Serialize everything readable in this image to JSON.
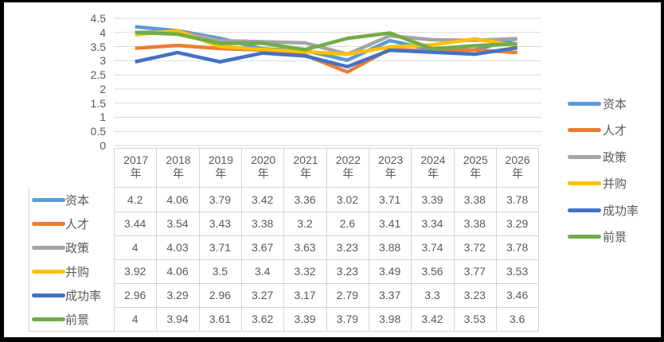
{
  "colors": {
    "text": "#595959",
    "grid": "#d9d9d9",
    "table_border": "#d4d4d4",
    "frame_border": "#000000"
  },
  "chart_data": {
    "type": "line",
    "title": "",
    "xlabel": "",
    "ylabel": "",
    "ylim": [
      0,
      4.5
    ],
    "y_ticks": [
      0,
      0.5,
      1,
      1.5,
      2,
      2.5,
      3,
      3.5,
      4,
      4.5
    ],
    "grid": true,
    "legend_position": "right",
    "category_suffix": "年",
    "categories": [
      "2017",
      "2018",
      "2019",
      "2020",
      "2021",
      "2022",
      "2023",
      "2024",
      "2025",
      "2026"
    ],
    "series": [
      {
        "name": "资本",
        "slug": "capital",
        "color": "#5B9BD5",
        "values": [
          4.2,
          4.06,
          3.79,
          3.42,
          3.36,
          3.02,
          3.71,
          3.39,
          3.38,
          3.78
        ]
      },
      {
        "name": "人才",
        "slug": "talent",
        "color": "#ED7D31",
        "values": [
          3.44,
          3.54,
          3.43,
          3.38,
          3.2,
          2.6,
          3.41,
          3.34,
          3.38,
          3.29
        ]
      },
      {
        "name": "政策",
        "slug": "policy",
        "color": "#A5A5A5",
        "values": [
          4,
          4.03,
          3.71,
          3.67,
          3.63,
          3.23,
          3.88,
          3.74,
          3.72,
          3.78
        ]
      },
      {
        "name": "并购",
        "slug": "merger",
        "color": "#FFC000",
        "values": [
          3.92,
          4.06,
          3.5,
          3.4,
          3.32,
          3.23,
          3.49,
          3.56,
          3.77,
          3.53
        ]
      },
      {
        "name": "成功率",
        "slug": "success-rate",
        "color": "#4472C4",
        "values": [
          2.96,
          3.29,
          2.96,
          3.27,
          3.17,
          2.79,
          3.37,
          3.3,
          3.23,
          3.46
        ]
      },
      {
        "name": "前景",
        "slug": "prospect",
        "color": "#70AD47",
        "values": [
          4,
          3.94,
          3.61,
          3.62,
          3.39,
          3.79,
          3.98,
          3.42,
          3.53,
          3.6
        ]
      }
    ]
  }
}
